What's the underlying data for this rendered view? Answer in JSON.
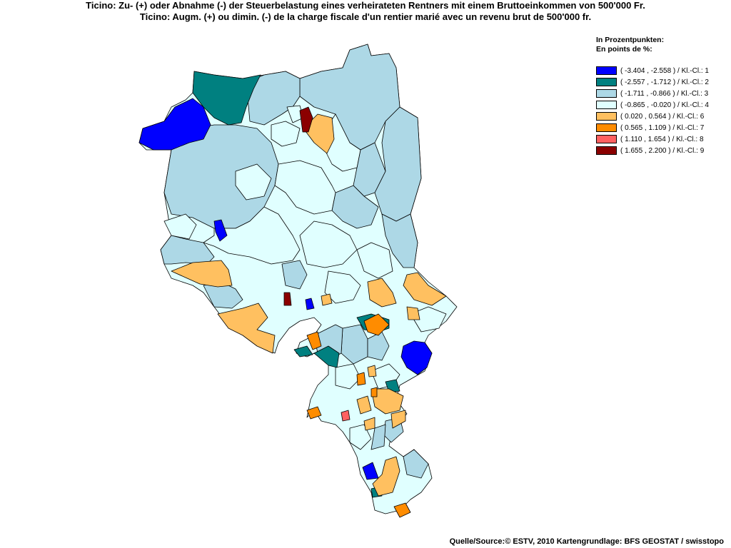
{
  "title": {
    "line1": "Ticino: Zu- (+) oder Abnahme (-) der Steuerbelastung eines verheirateten Rentners mit einem Bruttoeinkommen von 500'000 Fr.",
    "line2": "Ticino: Augm. (+) ou dimin. (-) de la charge fiscale d'un rentier marié avec un revenu brut de 500'000 fr."
  },
  "legend": {
    "heading1": "In Prozentpunkten:",
    "heading2": "En points de %:",
    "classes": [
      {
        "label": "( -3.404 , -2.558 ) / Kl.-Cl.: 1",
        "color": "#0000ff"
      },
      {
        "label": "( -2.557 , -1.712 ) / Kl.-Cl.: 2",
        "color": "#008080"
      },
      {
        "label": "( -1.711 , -0.866 ) / Kl.-Cl.: 3",
        "color": "#add8e6"
      },
      {
        "label": "( -0.865 , -0.020 ) / Kl.-Cl.: 4",
        "color": "#e0ffff"
      },
      {
        "label": "( 0.020 , 0.564 ) / Kl.-Cl.: 6",
        "color": "#ffc060"
      },
      {
        "label": "( 0.565 , 1.109 ) / Kl.-Cl.: 7",
        "color": "#ff8c00"
      },
      {
        "label": "( 1.110 , 1.654 ) / Kl.-Cl.: 8",
        "color": "#ff6060"
      },
      {
        "label": "( 1.655 , 2.200 ) / Kl.-Cl.: 9",
        "color": "#8b0000"
      }
    ]
  },
  "map": {
    "region": "Ticino",
    "class_colors": {
      "1": "#0000ff",
      "2": "#008080",
      "3": "#add8e6",
      "4": "#e0ffff",
      "6": "#ffc060",
      "7": "#ff8c00",
      "8": "#ff6060",
      "9": "#8b0000"
    }
  },
  "source": "Quelle/Source:© ESTV, 2010 Kartengrundlage: BFS GEOSTAT / swisstopo"
}
